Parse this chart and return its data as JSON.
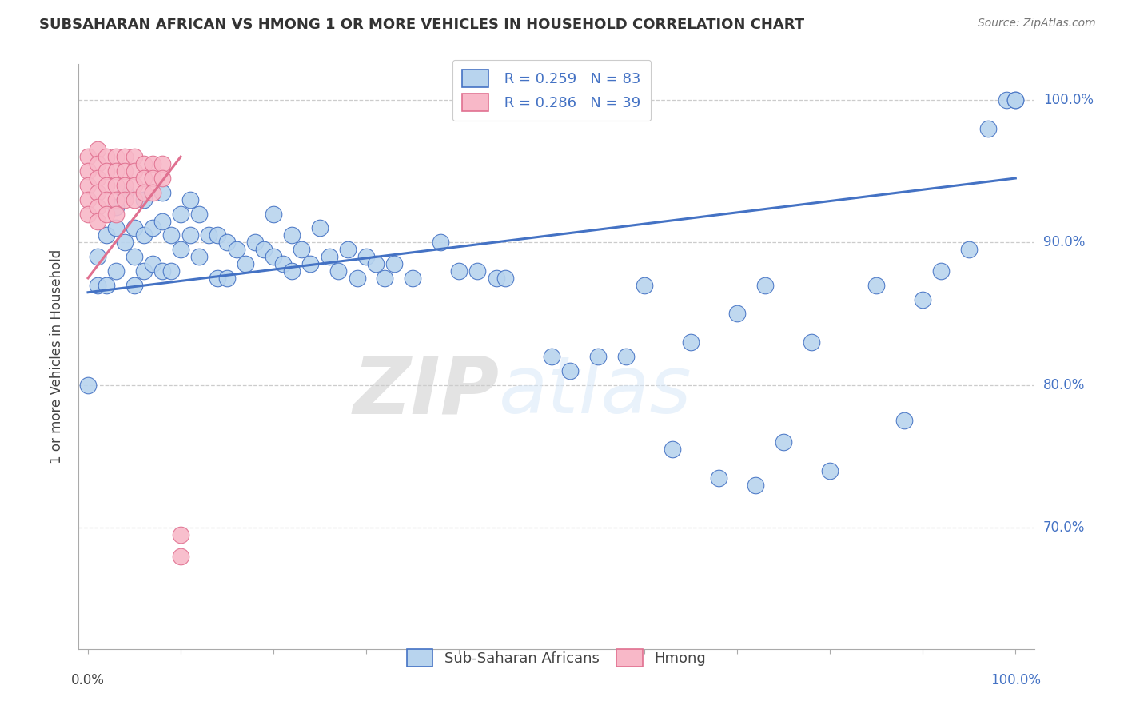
{
  "title": "SUBSAHARAN AFRICAN VS HMONG 1 OR MORE VEHICLES IN HOUSEHOLD CORRELATION CHART",
  "source": "Source: ZipAtlas.com",
  "ylabel": "1 or more Vehicles in Household",
  "legend_label1": "Sub-Saharan Africans",
  "legend_label2": "Hmong",
  "R1": 0.259,
  "N1": 83,
  "R2": 0.286,
  "N2": 39,
  "xlim": [
    -0.01,
    1.02
  ],
  "ylim": [
    0.615,
    1.025
  ],
  "yticks": [
    0.7,
    0.8,
    0.9,
    1.0
  ],
  "ytick_labels": [
    "70.0%",
    "80.0%",
    "90.0%",
    "100.0%"
  ],
  "color_blue": "#b8d4ee",
  "color_pink": "#f8b8c8",
  "line_color_blue": "#4472c4",
  "line_color_pink": "#e07090",
  "watermark_zip": "ZIP",
  "watermark_atlas": "atlas",
  "blue_scatter_x": [
    0.0,
    0.01,
    0.01,
    0.02,
    0.02,
    0.03,
    0.03,
    0.03,
    0.04,
    0.04,
    0.05,
    0.05,
    0.05,
    0.06,
    0.06,
    0.06,
    0.07,
    0.07,
    0.08,
    0.08,
    0.08,
    0.09,
    0.09,
    0.1,
    0.1,
    0.11,
    0.11,
    0.12,
    0.12,
    0.13,
    0.14,
    0.14,
    0.15,
    0.15,
    0.16,
    0.17,
    0.18,
    0.19,
    0.2,
    0.2,
    0.21,
    0.22,
    0.22,
    0.23,
    0.24,
    0.25,
    0.26,
    0.27,
    0.28,
    0.29,
    0.3,
    0.31,
    0.32,
    0.33,
    0.35,
    0.38,
    0.4,
    0.42,
    0.44,
    0.45,
    0.5,
    0.52,
    0.55,
    0.58,
    0.6,
    0.63,
    0.65,
    0.68,
    0.7,
    0.72,
    0.73,
    0.75,
    0.78,
    0.8,
    0.85,
    0.88,
    0.9,
    0.92,
    0.95,
    0.97,
    0.99,
    1.0,
    1.0
  ],
  "blue_scatter_y": [
    0.8,
    0.87,
    0.89,
    0.905,
    0.87,
    0.925,
    0.91,
    0.88,
    0.935,
    0.9,
    0.91,
    0.89,
    0.87,
    0.93,
    0.905,
    0.88,
    0.91,
    0.885,
    0.935,
    0.915,
    0.88,
    0.905,
    0.88,
    0.92,
    0.895,
    0.93,
    0.905,
    0.92,
    0.89,
    0.905,
    0.905,
    0.875,
    0.9,
    0.875,
    0.895,
    0.885,
    0.9,
    0.895,
    0.92,
    0.89,
    0.885,
    0.905,
    0.88,
    0.895,
    0.885,
    0.91,
    0.89,
    0.88,
    0.895,
    0.875,
    0.89,
    0.885,
    0.875,
    0.885,
    0.875,
    0.9,
    0.88,
    0.88,
    0.875,
    0.875,
    0.82,
    0.81,
    0.82,
    0.82,
    0.87,
    0.755,
    0.83,
    0.735,
    0.85,
    0.73,
    0.87,
    0.76,
    0.83,
    0.74,
    0.87,
    0.775,
    0.86,
    0.88,
    0.895,
    0.98,
    1.0,
    1.0,
    1.0
  ],
  "pink_scatter_x": [
    0.0,
    0.0,
    0.0,
    0.0,
    0.0,
    0.01,
    0.01,
    0.01,
    0.01,
    0.01,
    0.01,
    0.02,
    0.02,
    0.02,
    0.02,
    0.02,
    0.03,
    0.03,
    0.03,
    0.03,
    0.03,
    0.04,
    0.04,
    0.04,
    0.04,
    0.05,
    0.05,
    0.05,
    0.05,
    0.06,
    0.06,
    0.06,
    0.07,
    0.07,
    0.07,
    0.08,
    0.08,
    0.1,
    0.1
  ],
  "pink_scatter_y": [
    0.96,
    0.95,
    0.94,
    0.93,
    0.92,
    0.965,
    0.955,
    0.945,
    0.935,
    0.925,
    0.915,
    0.96,
    0.95,
    0.94,
    0.93,
    0.92,
    0.96,
    0.95,
    0.94,
    0.93,
    0.92,
    0.96,
    0.95,
    0.94,
    0.93,
    0.96,
    0.95,
    0.94,
    0.93,
    0.955,
    0.945,
    0.935,
    0.955,
    0.945,
    0.935,
    0.955,
    0.945,
    0.695,
    0.68
  ],
  "blue_trend_x0": 0.0,
  "blue_trend_y0": 0.865,
  "blue_trend_x1": 1.0,
  "blue_trend_y1": 0.945,
  "pink_trend_x0": 0.0,
  "pink_trend_y0": 0.875,
  "pink_trend_x1": 0.1,
  "pink_trend_y1": 0.96
}
